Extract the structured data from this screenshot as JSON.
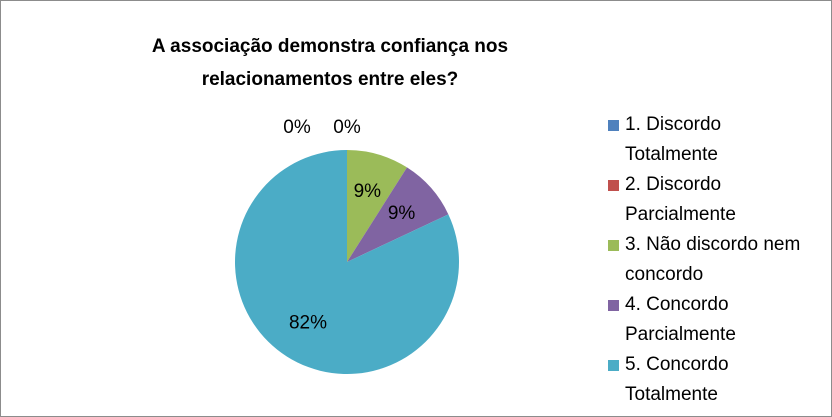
{
  "chart_data": {
    "type": "pie",
    "title": "A associação demonstra confiança nos relacionamentos entre eles?",
    "categories": [
      "1. Discordo Totalmente",
      "2. Discordo Parcialmente",
      "3. Não discordo nem concordo",
      "4. Concordo Parcialmente",
      "5. Concordo Totalmente"
    ],
    "values": [
      0,
      0,
      9,
      9,
      82
    ],
    "value_labels": [
      "0%",
      "0%",
      "9%",
      "9%",
      "82%"
    ],
    "colors": [
      "#4f81bd",
      "#c0504d",
      "#9bbb59",
      "#8064a2",
      "#4bacc6"
    ],
    "legend": "right"
  }
}
